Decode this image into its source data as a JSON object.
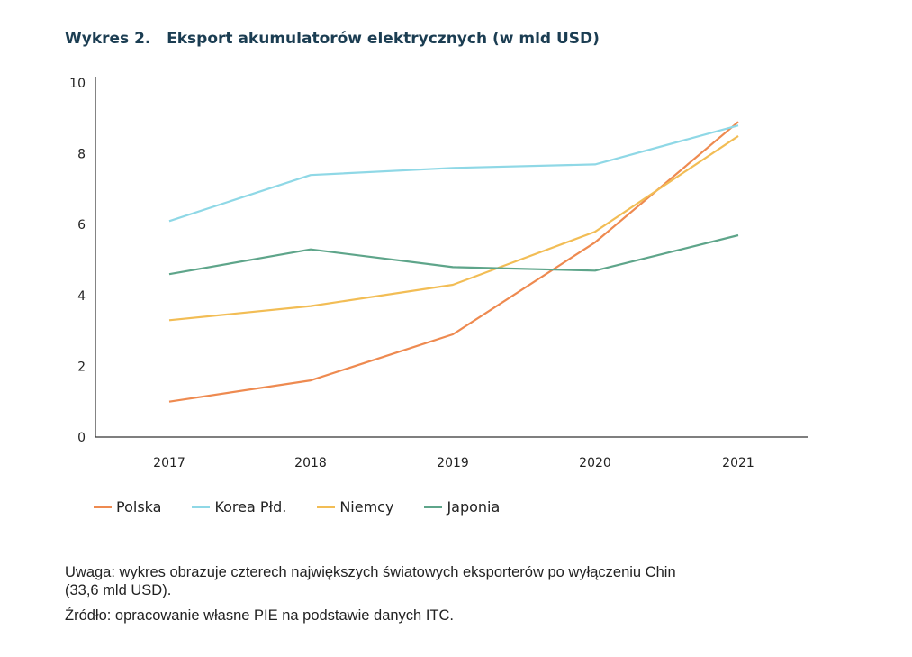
{
  "title": "Wykres 2.   Eksport akumulatorów elektrycznych (w mld USD)",
  "chart_data": {
    "type": "line",
    "title": "Wykres 2.   Eksport akumulatorów elektrycznych (w mld USD)",
    "categories": [
      "2017",
      "2018",
      "2019",
      "2020",
      "2021"
    ],
    "ylim": [
      0,
      10
    ],
    "yticks": [
      "0",
      "2",
      "4",
      "6",
      "8",
      "10"
    ],
    "grid": false,
    "legend_position": "bottom-left",
    "series": [
      {
        "name": "Polska",
        "color": "#ee8a50",
        "values": [
          1.0,
          1.6,
          2.9,
          5.5,
          8.9
        ]
      },
      {
        "name": "Korea Płd.",
        "color": "#8fd8e6",
        "values": [
          6.1,
          7.4,
          7.6,
          7.7,
          8.8
        ]
      },
      {
        "name": "Niemcy",
        "color": "#f2bd55",
        "values": [
          3.3,
          3.7,
          4.3,
          5.8,
          8.5
        ]
      },
      {
        "name": "Japonia",
        "color": "#5ea58a",
        "values": [
          4.6,
          5.3,
          4.8,
          4.7,
          5.7
        ]
      }
    ]
  },
  "notes": {
    "uwaga_line1": "Uwaga: wykres obrazuje czterech największych światowych eksporterów po wyłączeniu Chin",
    "uwaga_line2": "(33,6 mld USD).",
    "source": "Źródło: opracowanie własne PIE na podstawie danych ITC."
  }
}
